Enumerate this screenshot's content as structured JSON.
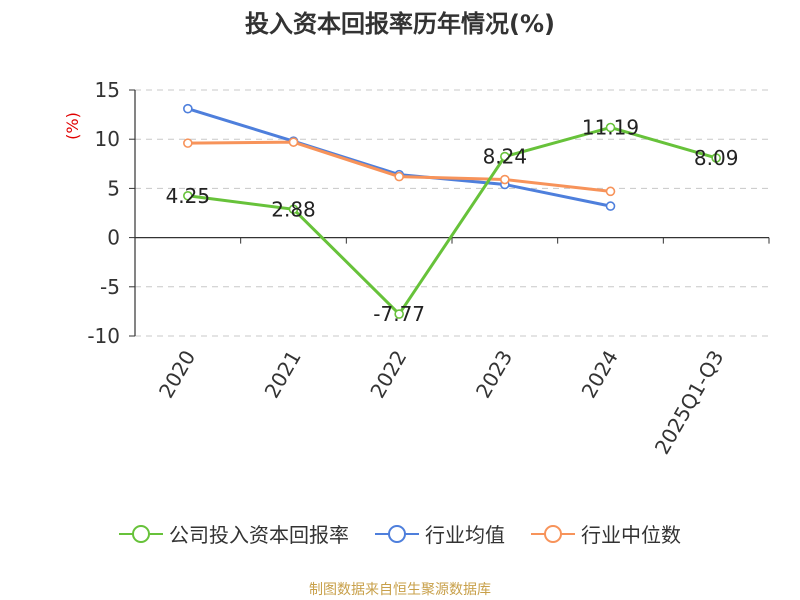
{
  "chart_data": {
    "type": "line",
    "title": "投入资本回报率历年情况(%)",
    "ylabel": "(%)",
    "categories": [
      "2020",
      "2021",
      "2022",
      "2023",
      "2024",
      "2025Q1-Q3"
    ],
    "yticks": [
      "15",
      "10",
      "5",
      "0",
      "-5",
      "-10"
    ],
    "ylim": [
      -10,
      15
    ],
    "grid": true,
    "legend_position": "bottom",
    "series": [
      {
        "name": "公司投入资本回报率",
        "color": "#67c23a",
        "values": [
          4.25,
          2.88,
          -7.77,
          8.24,
          11.19,
          8.09
        ],
        "labels": [
          "4.25",
          "2.88",
          "-7.77",
          "8.24",
          "11.19",
          "8.09"
        ]
      },
      {
        "name": "行业均值",
        "color": "#4e7fdc",
        "values": [
          13.1,
          9.8,
          6.4,
          5.4,
          3.2,
          null
        ]
      },
      {
        "name": "行业中位数",
        "color": "#f7935a",
        "values": [
          9.6,
          9.7,
          6.2,
          5.9,
          4.7,
          null
        ]
      }
    ]
  },
  "source_note": "制图数据来自恒生聚源数据库"
}
